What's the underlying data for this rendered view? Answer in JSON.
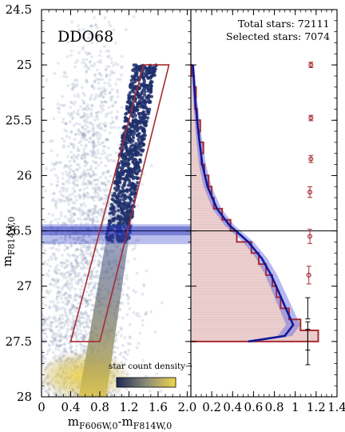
{
  "chart_data": [
    {
      "type": "scatter",
      "panel": "left",
      "title": "DDO68",
      "xlabel_main": "m",
      "xlabel_sub1": "F606W,0",
      "xlabel_mid": "-m",
      "xlabel_sub2": "F814W,0",
      "ylabel_main": "m",
      "ylabel_sub": "F814W,0",
      "xlim": [
        0.0,
        2.05
      ],
      "ylim": [
        28.0,
        24.5
      ],
      "y_inverted": true,
      "xticks": [
        0,
        0.4,
        0.8,
        1.2,
        1.6,
        2.0
      ],
      "xtick_labels": [
        "0",
        "0.4",
        "0.8",
        "1.2",
        "1.6",
        "2.0"
      ],
      "yticks": [
        24.5,
        25,
        25.5,
        26,
        26.5,
        27,
        27.5,
        28
      ],
      "ytick_labels": [
        "24.5",
        "25",
        "25.5",
        "26",
        "26.5",
        "27",
        "27.5",
        "28"
      ],
      "colorbar_label": "star count density→",
      "colors": {
        "background_points": "#8a95b8",
        "selected_points": "#1f2f6b",
        "selection_box": "#a62b33",
        "band": "#3a45c8",
        "cmap_low": "#1f2a55",
        "cmap_high": "#efd64a"
      },
      "selection_box": {
        "x": [
          1.4,
          1.75,
          0.8,
          0.4
        ],
        "y": [
          25.0,
          25.0,
          27.5,
          27.5
        ]
      },
      "horizontal_band": {
        "y_low": 26.44,
        "y_high": 26.62,
        "centre": 26.5
      },
      "rgb_sequence": {
        "x_at_bright": 1.42,
        "x_at_faint": 0.82,
        "width": 0.14
      }
    },
    {
      "type": "line",
      "panel": "right",
      "ylim": [
        28.0,
        24.5
      ],
      "xlim": [
        0.0,
        1.4
      ],
      "xticks": [
        0,
        0.2,
        0.4,
        0.6,
        0.8,
        1.0,
        1.2,
        1.4
      ],
      "xtick_labels": [
        "0",
        "0.2",
        "0.4",
        "0.6",
        "0.8",
        "1",
        "1.2",
        "1.4"
      ],
      "annotation_total": "Total stars: 72111",
      "annotation_selected": "Selected stars: 7074",
      "colors": {
        "histogram": "#a62b33",
        "histogram_fill": "#e9c9c9",
        "model": "#10189a",
        "model_band": "#5a62e0",
        "error_points": "#a62b33"
      },
      "model_curve": {
        "y": [
          25.0,
          25.3,
          25.6,
          25.9,
          26.1,
          26.3,
          26.45,
          26.6,
          26.75,
          26.9,
          27.05,
          27.2,
          27.35,
          27.45,
          27.5
        ],
        "x": [
          0.02,
          0.04,
          0.07,
          0.11,
          0.16,
          0.25,
          0.37,
          0.55,
          0.68,
          0.77,
          0.84,
          0.91,
          0.98,
          0.9,
          0.55
        ]
      },
      "histogram": {
        "y": [
          25.0,
          25.1,
          25.2,
          25.3,
          25.4,
          25.5,
          25.6,
          25.7,
          25.8,
          25.9,
          26.0,
          26.1,
          26.2,
          26.3,
          26.4,
          26.5,
          26.6,
          26.7,
          26.8,
          26.9,
          27.0,
          27.1,
          27.2,
          27.3,
          27.4,
          27.5
        ],
        "x": [
          0.01,
          0.03,
          0.05,
          0.04,
          0.06,
          0.09,
          0.08,
          0.12,
          0.1,
          0.13,
          0.17,
          0.2,
          0.22,
          0.3,
          0.38,
          0.44,
          0.58,
          0.65,
          0.72,
          0.78,
          0.82,
          0.86,
          0.94,
          1.05,
          1.22,
          1.2
        ]
      },
      "points": {
        "x": [
          1.15,
          1.15,
          1.15,
          1.14,
          1.14,
          1.13,
          1.12,
          1.12,
          1.12
        ],
        "y": [
          25.0,
          25.48,
          25.85,
          26.15,
          26.55,
          26.9,
          27.2,
          27.45,
          27.55
        ],
        "err": [
          0.0,
          0.0,
          0.02,
          0.03,
          0.04,
          0.05,
          0.06,
          0.08,
          0.1
        ]
      }
    }
  ]
}
